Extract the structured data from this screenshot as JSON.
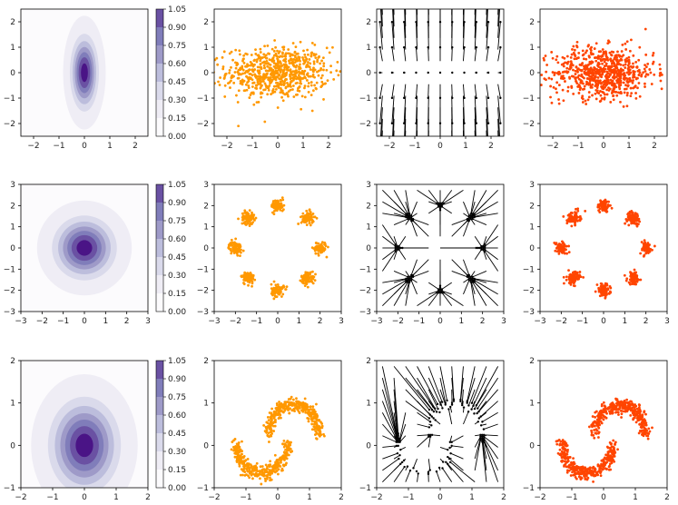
{
  "figure": {
    "layout": "3 rows x 4 columns",
    "colors": {
      "density_dark": "#4a1486",
      "density_light": "#f2f0f7",
      "target_samples": "#ff9800",
      "model_samples": "#ff4500",
      "vector_field": "#000000"
    }
  },
  "chart_data": [
    {
      "id": "r0-density",
      "type": "heatmap",
      "title": "",
      "xlabel": "",
      "ylabel": "",
      "colormap": "Purples",
      "distribution": {
        "kind": "gaussian",
        "mean": [
          0,
          0
        ],
        "std": [
          0.3,
          0.8
        ]
      },
      "xlim": [
        -2.5,
        2.5
      ],
      "ylim": [
        -2.5,
        2.5
      ],
      "xticks": [
        -2,
        -1,
        0,
        1,
        2
      ],
      "yticks": [
        -2,
        -1,
        0,
        1,
        2
      ],
      "colorbar": {
        "ticks": [
          "0.00",
          "0.15",
          "0.30",
          "0.45",
          "0.60",
          "0.75",
          "0.90",
          "1.05"
        ]
      }
    },
    {
      "id": "r0-target",
      "type": "scatter",
      "title": "",
      "xlabel": "",
      "ylabel": "",
      "color": "#ff9800",
      "distribution": {
        "kind": "gaussian",
        "mean": [
          0,
          0
        ],
        "std": [
          1.0,
          0.5
        ],
        "n": 700
      },
      "xlim": [
        -2.5,
        2.5
      ],
      "ylim": [
        -2.5,
        2.5
      ],
      "xticks": [
        -2,
        -1,
        0,
        1,
        2
      ],
      "yticks": [
        -2,
        -1,
        0,
        1,
        2
      ]
    },
    {
      "id": "r0-flow",
      "type": "scatter",
      "title": "",
      "xlabel": "",
      "ylabel": "",
      "marks": "vectors",
      "field": {
        "kind": "stretch",
        "description": "arrows pushing points vertically outward"
      },
      "xlim": [
        -2.5,
        2.5
      ],
      "ylim": [
        -2.5,
        2.5
      ],
      "xticks": [
        -2,
        -1,
        0,
        1,
        2
      ],
      "yticks": [
        -2,
        -1,
        0,
        1,
        2
      ]
    },
    {
      "id": "r0-model",
      "type": "scatter",
      "title": "",
      "xlabel": "",
      "ylabel": "",
      "color": "#ff4500",
      "distribution": {
        "kind": "gaussian",
        "mean": [
          0,
          0
        ],
        "std": [
          1.0,
          0.5
        ],
        "n": 700
      },
      "xlim": [
        -2.5,
        2.5
      ],
      "ylim": [
        -2.5,
        2.5
      ],
      "xticks": [
        -2,
        -1,
        0,
        1,
        2
      ],
      "yticks": [
        -2,
        -1,
        0,
        1,
        2
      ]
    },
    {
      "id": "r1-density",
      "type": "heatmap",
      "title": "",
      "xlabel": "",
      "ylabel": "",
      "colormap": "Purples",
      "distribution": {
        "kind": "gaussian",
        "mean": [
          0,
          0
        ],
        "std": [
          0.8,
          0.8
        ]
      },
      "xlim": [
        -3,
        3
      ],
      "ylim": [
        -3,
        3
      ],
      "xticks": [
        -3,
        -2,
        -1,
        0,
        1,
        2,
        3
      ],
      "yticks": [
        -3,
        -2,
        -1,
        0,
        1,
        2,
        3
      ],
      "colorbar": {
        "ticks": [
          "0.00",
          "0.15",
          "0.30",
          "0.45",
          "0.60",
          "0.75",
          "0.90",
          "1.05"
        ]
      }
    },
    {
      "id": "r1-target",
      "type": "scatter",
      "title": "",
      "xlabel": "",
      "ylabel": "",
      "color": "#ff9800",
      "distribution": {
        "kind": "ring_of_gaussians",
        "modes": 8,
        "radius": 2.0,
        "std": 0.15,
        "n": 640
      },
      "xlim": [
        -3,
        3
      ],
      "ylim": [
        -3,
        3
      ],
      "xticks": [
        -3,
        -2,
        -1,
        0,
        1,
        2,
        3
      ],
      "yticks": [
        -3,
        -2,
        -1,
        0,
        1,
        2,
        3
      ]
    },
    {
      "id": "r1-flow",
      "type": "scatter",
      "title": "",
      "xlabel": "",
      "ylabel": "",
      "marks": "vectors",
      "field": {
        "kind": "to_modes",
        "modes": 8,
        "radius": 2.0,
        "description": "arrows converging to 8 modes"
      },
      "xlim": [
        -3,
        3
      ],
      "ylim": [
        -3,
        3
      ],
      "xticks": [
        -3,
        -2,
        -1,
        0,
        1,
        2,
        3
      ],
      "yticks": [
        -3,
        -2,
        -1,
        0,
        1,
        2,
        3
      ]
    },
    {
      "id": "r1-model",
      "type": "scatter",
      "title": "",
      "xlabel": "",
      "ylabel": "",
      "color": "#ff4500",
      "distribution": {
        "kind": "ring_of_gaussians",
        "modes": 8,
        "radius": 2.0,
        "std": 0.15,
        "n": 640
      },
      "xlim": [
        -3,
        3
      ],
      "ylim": [
        -3,
        3
      ],
      "xticks": [
        -3,
        -2,
        -1,
        0,
        1,
        2,
        3
      ],
      "yticks": [
        -3,
        -2,
        -1,
        0,
        1,
        2,
        3
      ]
    },
    {
      "id": "r2-density",
      "type": "heatmap",
      "title": "",
      "xlabel": "",
      "ylabel": "",
      "colormap": "Purples",
      "distribution": {
        "kind": "gaussian",
        "mean": [
          0,
          0
        ],
        "std": [
          0.6,
          0.6
        ]
      },
      "xlim": [
        -2,
        2
      ],
      "ylim": [
        -1,
        2
      ],
      "xticks": [
        -2,
        -1,
        0,
        1,
        2
      ],
      "yticks": [
        -1,
        0,
        1,
        2
      ],
      "colorbar": {
        "ticks": [
          "0.00",
          "0.15",
          "0.30",
          "0.45",
          "0.60",
          "0.75",
          "0.90",
          "1.05"
        ]
      }
    },
    {
      "id": "r2-target",
      "type": "scatter",
      "title": "",
      "xlabel": "",
      "ylabel": "",
      "color": "#ff9800",
      "distribution": {
        "kind": "two_moons",
        "noise": 0.08,
        "n": 700
      },
      "xlim": [
        -2,
        2
      ],
      "ylim": [
        -1,
        2
      ],
      "xticks": [
        -2,
        -1,
        0,
        1,
        2
      ],
      "yticks": [
        -1,
        0,
        1,
        2
      ]
    },
    {
      "id": "r2-flow",
      "type": "scatter",
      "title": "",
      "xlabel": "",
      "ylabel": "",
      "marks": "vectors",
      "field": {
        "kind": "to_moons",
        "description": "arrows converging to two moons"
      },
      "xlim": [
        -2,
        2
      ],
      "ylim": [
        -1,
        2
      ],
      "xticks": [
        -2,
        -1,
        0,
        1,
        2
      ],
      "yticks": [
        -1,
        0,
        1,
        2
      ]
    },
    {
      "id": "r2-model",
      "type": "scatter",
      "title": "",
      "xlabel": "",
      "ylabel": "",
      "color": "#ff4500",
      "distribution": {
        "kind": "two_moons",
        "noise": 0.08,
        "n": 700
      },
      "xlim": [
        -2,
        2
      ],
      "ylim": [
        -1,
        2
      ],
      "xticks": [
        -2,
        -1,
        0,
        1,
        2
      ],
      "yticks": [
        -1,
        0,
        1,
        2
      ]
    }
  ]
}
